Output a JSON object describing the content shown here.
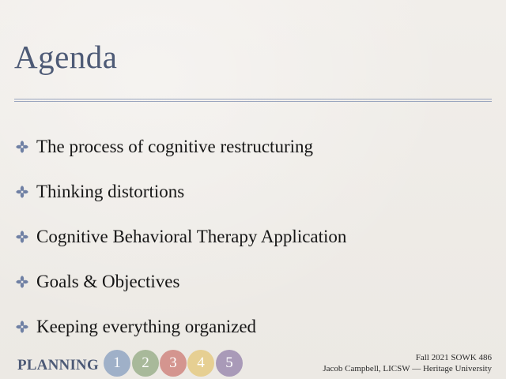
{
  "slide": {
    "title": "Agenda",
    "bullets": [
      "The process of cognitive restructuring",
      "Thinking distortions",
      "Cognitive Behavioral Therapy Application",
      "Goals & Objectives",
      "Keeping everything organized"
    ],
    "bullet_icon": "cross-flourish-icon",
    "accent_color": "#4d5a76"
  },
  "footer": {
    "section_label": "PLANNING",
    "steps": [
      {
        "label": "1",
        "color": "#9fb0c8"
      },
      {
        "label": "2",
        "color": "#a8b99a"
      },
      {
        "label": "3",
        "color": "#d4958f"
      },
      {
        "label": "4",
        "color": "#e6cf92"
      },
      {
        "label": "5",
        "color": "#a99ab8"
      }
    ],
    "course": "Fall 2021 SOWK 486",
    "instructor": "Jacob Campbell, LICSW — Heritage University"
  }
}
